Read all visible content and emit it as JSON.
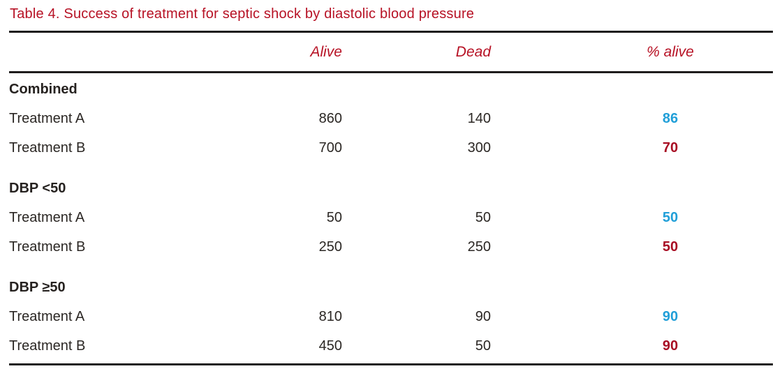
{
  "title": "Table 4. Success of treatment for septic shock by diastolic blood pressure",
  "colors": {
    "accent_red": "#b71225",
    "pct_blue": "#219fd8",
    "pct_red": "#a80e24",
    "text_black": "#2b2724"
  },
  "table": {
    "columns": {
      "alive": "Alive",
      "dead": "Dead",
      "pct_alive": "% alive"
    },
    "groups": [
      {
        "label": "Combined",
        "rows": [
          {
            "label": "Treatment A",
            "alive": "860",
            "dead": "140",
            "pct": "86"
          },
          {
            "label": "Treatment B",
            "alive": "700",
            "dead": "300",
            "pct": "70"
          }
        ]
      },
      {
        "label": "DBP <50",
        "rows": [
          {
            "label": "Treatment A",
            "alive": "50",
            "dead": "50",
            "pct": "50"
          },
          {
            "label": "Treatment B",
            "alive": "250",
            "dead": "250",
            "pct": "50"
          }
        ]
      },
      {
        "label": "DBP ≥50",
        "rows": [
          {
            "label": "Treatment A",
            "alive": "810",
            "dead": "90",
            "pct": "90"
          },
          {
            "label": "Treatment B",
            "alive": "450",
            "dead": "50",
            "pct": "90"
          }
        ]
      }
    ]
  }
}
